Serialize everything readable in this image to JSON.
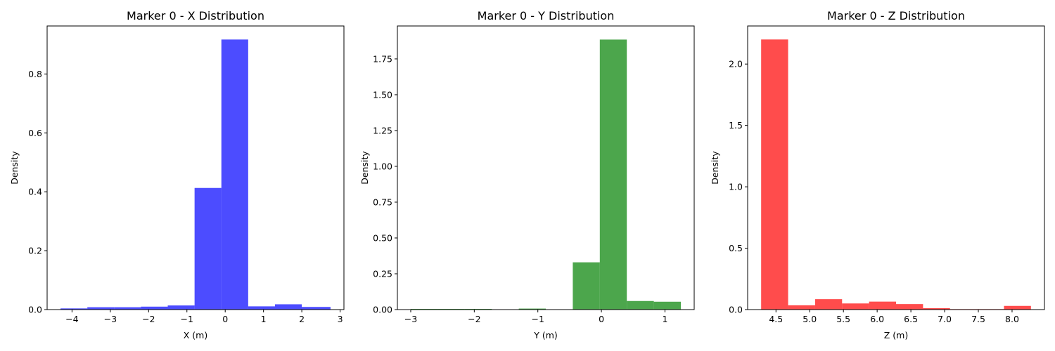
{
  "chart_data": [
    {
      "type": "bar",
      "histogram": true,
      "title": "Marker 0 - X Distribution",
      "xlabel": "X (m)",
      "ylabel": "Density",
      "color": "#0000ff",
      "opacity": 0.7,
      "bin_edges": [
        -4.3,
        -3.6,
        -2.9,
        -2.2,
        -1.5,
        -0.8,
        -0.1,
        0.6,
        1.3,
        2.0,
        2.75
      ],
      "values": [
        0.004,
        0.008,
        0.008,
        0.01,
        0.014,
        0.413,
        0.917,
        0.011,
        0.018,
        0.009
      ],
      "xlim": [
        -4.65,
        3.1
      ],
      "ylim": [
        0,
        0.963
      ],
      "xticks": [
        -4,
        -3,
        -2,
        -1,
        0,
        1,
        2,
        3
      ],
      "xtick_labels": [
        "−4",
        "−3",
        "−2",
        "−1",
        "0",
        "1",
        "2",
        "3"
      ],
      "yticks": [
        0,
        0.2,
        0.4,
        0.6,
        0.8
      ],
      "ytick_labels": [
        "0.0",
        "0.2",
        "0.4",
        "0.6",
        "0.8"
      ]
    },
    {
      "type": "bar",
      "histogram": true,
      "title": "Marker 0 - Y Distribution",
      "xlabel": "Y (m)",
      "ylabel": "Density",
      "color": "#008000",
      "opacity": 0.7,
      "bin_edges": [
        -3.0,
        -2.575,
        -2.15,
        -1.725,
        -1.3,
        -0.875,
        -0.45,
        -0.025,
        0.4,
        0.825,
        1.25
      ],
      "values": [
        0.005,
        0.005,
        0.005,
        0.002,
        0.007,
        0.0,
        0.33,
        1.885,
        0.06,
        0.055
      ],
      "xlim": [
        -3.21,
        1.46
      ],
      "ylim": [
        0,
        1.98
      ],
      "xticks": [
        -3,
        -2,
        -1,
        0,
        1
      ],
      "xtick_labels": [
        "−3",
        "−2",
        "−1",
        "0",
        "1"
      ],
      "yticks": [
        0,
        0.25,
        0.5,
        0.75,
        1.0,
        1.25,
        1.5,
        1.75
      ],
      "ytick_labels": [
        "0.00",
        "0.25",
        "0.50",
        "0.75",
        "1.00",
        "1.25",
        "1.50",
        "1.75"
      ]
    },
    {
      "type": "bar",
      "histogram": true,
      "title": "Marker 0 - Z Distribution",
      "xlabel": "Z (m)",
      "ylabel": "Density",
      "color": "#ff0000",
      "opacity": 0.7,
      "bin_edges": [
        4.28,
        4.68,
        5.08,
        5.48,
        5.88,
        6.28,
        6.68,
        7.08,
        7.48,
        7.88,
        8.28
      ],
      "values": [
        2.2,
        0.035,
        0.085,
        0.05,
        0.065,
        0.045,
        0.012,
        0.004,
        0.004,
        0.03
      ],
      "xlim": [
        4.08,
        8.48
      ],
      "ylim": [
        0,
        2.31
      ],
      "xticks": [
        4.5,
        5.0,
        5.5,
        6.0,
        6.5,
        7.0,
        7.5,
        8.0
      ],
      "xtick_labels": [
        "4.5",
        "5.0",
        "5.5",
        "6.0",
        "6.5",
        "7.0",
        "7.5",
        "8.0"
      ],
      "yticks": [
        0,
        0.5,
        1.0,
        1.5,
        2.0
      ],
      "ytick_labels": [
        "0.0",
        "0.5",
        "1.0",
        "1.5",
        "2.0"
      ]
    }
  ]
}
